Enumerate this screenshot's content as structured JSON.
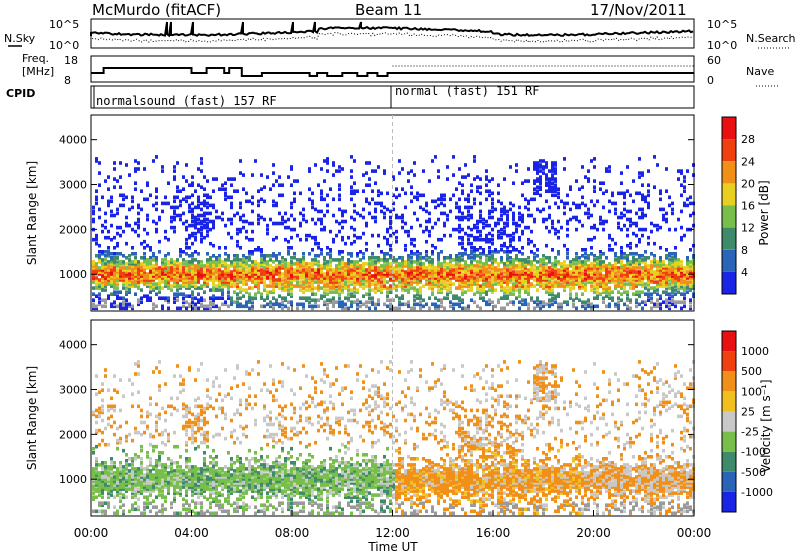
{
  "header": {
    "radar": "McMurdo (fitACF)",
    "beam": "Beam 11",
    "date": "17/Nov/2011"
  },
  "top_panels": {
    "noise_left_label": "N.Sky",
    "noise_right_label": "N.Search",
    "noise_left_ticks": [
      "10^5",
      "10^0"
    ],
    "noise_right_ticks": [
      "10^5",
      "10^0"
    ],
    "freq_label_1": "Freq.",
    "freq_label_2": "[MHz]",
    "freq_ticks": [
      "18",
      "8"
    ],
    "nave_label": "Nave",
    "nave_ticks": [
      "60",
      "0"
    ],
    "cpid_label": "CPID",
    "cpid_segments": [
      {
        "label": "normalsound (fast) 157 RF",
        "start_hour": 0
      },
      {
        "label": "normal (fast) 151 RF",
        "start_hour": 12
      }
    ]
  },
  "chart_data": [
    {
      "type": "heatmap",
      "title": "",
      "xlabel": "Time UT",
      "ylabel": "Slant Range [km]",
      "x_ticks": [
        "00:00",
        "04:00",
        "08:00",
        "12:00",
        "16:00",
        "20:00",
        "00:00"
      ],
      "x_range_hours": [
        0,
        24
      ],
      "y_ticks": [
        1000,
        2000,
        3000,
        4000
      ],
      "ylim": [
        180,
        4550
      ],
      "colorbar_label": "Power [dB]",
      "colorbar_ticks": [
        "4",
        "8",
        "12",
        "16",
        "20",
        "24",
        "28"
      ],
      "colorbar_colors": [
        "#1a24e6",
        "#2a64b8",
        "#3e8a6a",
        "#78be4a",
        "#e8d020",
        "#f09018",
        "#f04010",
        "#e81010"
      ]
    },
    {
      "type": "heatmap",
      "title": "",
      "xlabel": "Time UT",
      "ylabel": "Slant Range [km]",
      "x_ticks": [
        "00:00",
        "04:00",
        "08:00",
        "12:00",
        "16:00",
        "20:00",
        "00:00"
      ],
      "x_range_hours": [
        0,
        24
      ],
      "y_ticks": [
        1000,
        2000,
        3000,
        4000
      ],
      "ylim": [
        180,
        4550
      ],
      "colorbar_label": "Velocity [m s⁻¹]",
      "colorbar_ticks": [
        "1000",
        "500",
        "100",
        "25",
        "-25",
        "-100",
        "-500",
        "-1000"
      ],
      "colorbar_colors": [
        "#1a24e6",
        "#2a64b8",
        "#3e8a6a",
        "#78be4a",
        "#c8c8c8",
        "#f0c020",
        "#f09018",
        "#f04010",
        "#e81010"
      ]
    }
  ],
  "colors": {
    "ground_scatter": "#9a9a9a",
    "power_scale": [
      "#1a24e6",
      "#2a64b8",
      "#3e8a6a",
      "#78be4a",
      "#e8d020",
      "#f09018",
      "#f04010",
      "#e81010"
    ],
    "velocity_scale": [
      "#1a24e6",
      "#2a64b8",
      "#3e8a6a",
      "#78be4a",
      "#c8c8c8",
      "#f0c020",
      "#f09018",
      "#f04010",
      "#e81010"
    ]
  }
}
